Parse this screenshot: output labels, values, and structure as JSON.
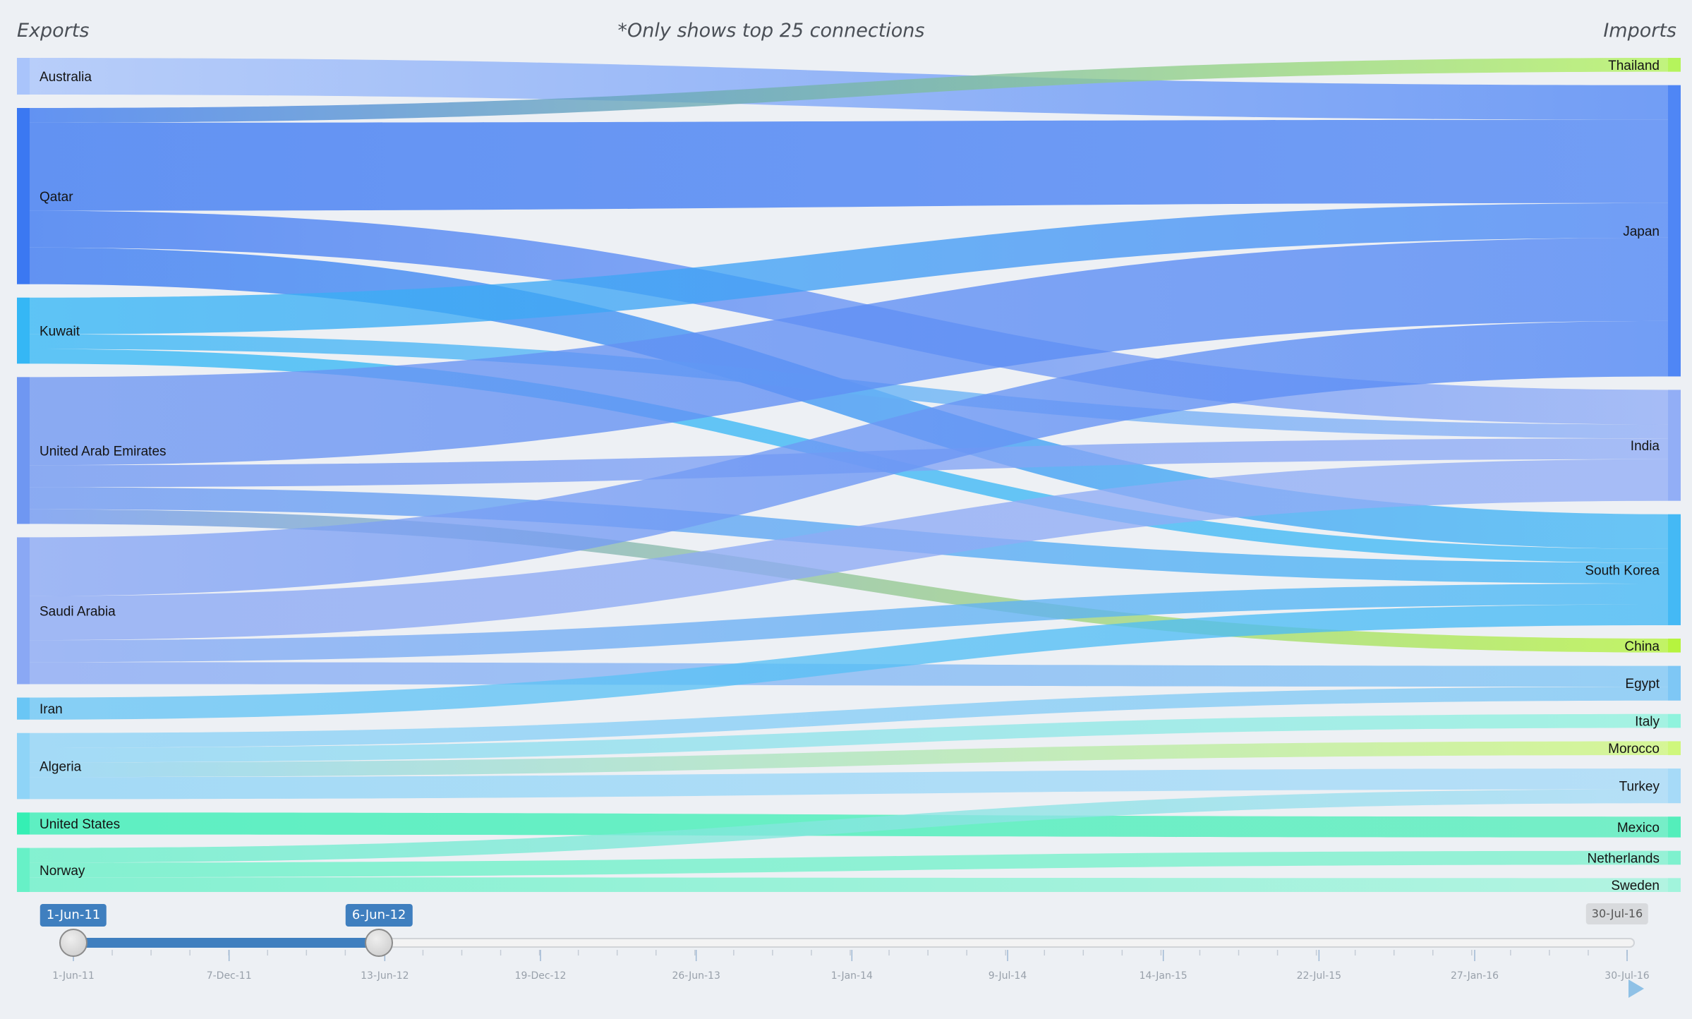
{
  "header": {
    "left_title": "Exports",
    "center_note": "*Only shows top 25 connections",
    "right_title": "Imports"
  },
  "chart_data": {
    "type": "sankey",
    "sources": [
      {
        "name": "Australia",
        "color": "#a9c4fb"
      },
      {
        "name": "Qatar",
        "color": "#3b78f2"
      },
      {
        "name": "Kuwait",
        "color": "#35b7f5"
      },
      {
        "name": "United Arab Emirates",
        "color": "#6f97f2"
      },
      {
        "name": "Saudi Arabia",
        "color": "#8aa8f4"
      },
      {
        "name": "Iran",
        "color": "#6ac6f5"
      },
      {
        "name": "Algeria",
        "color": "#8fd4f7"
      },
      {
        "name": "United States",
        "color": "#35efb4"
      },
      {
        "name": "Norway",
        "color": "#67f1c7"
      }
    ],
    "targets": [
      {
        "name": "Thailand",
        "color": "#b5f45c"
      },
      {
        "name": "Japan",
        "color": "#4f86f5"
      },
      {
        "name": "India",
        "color": "#92aef6"
      },
      {
        "name": "South Korea",
        "color": "#44b9f5"
      },
      {
        "name": "China",
        "color": "#b6f43e"
      },
      {
        "name": "Egypt",
        "color": "#7ec7f5"
      },
      {
        "name": "Italy",
        "color": "#8ff3dd"
      },
      {
        "name": "Morocco",
        "color": "#cff77c"
      },
      {
        "name": "Turkey",
        "color": "#a6daf8"
      },
      {
        "name": "Mexico",
        "color": "#54eebb"
      },
      {
        "name": "Netherlands",
        "color": "#7ef1ce"
      },
      {
        "name": "Sweden",
        "color": "#a1f4dc"
      }
    ],
    "links": [
      {
        "source": "Australia",
        "target": "Japan",
        "value": 5
      },
      {
        "source": "Qatar",
        "target": "Thailand",
        "value": 2
      },
      {
        "source": "Qatar",
        "target": "Japan",
        "value": 12
      },
      {
        "source": "Qatar",
        "target": "India",
        "value": 5
      },
      {
        "source": "Qatar",
        "target": "South Korea",
        "value": 5
      },
      {
        "source": "Kuwait",
        "target": "Japan",
        "value": 5
      },
      {
        "source": "Kuwait",
        "target": "India",
        "value": 2
      },
      {
        "source": "Kuwait",
        "target": "South Korea",
        "value": 2
      },
      {
        "source": "United Arab Emirates",
        "target": "Japan",
        "value": 12
      },
      {
        "source": "United Arab Emirates",
        "target": "India",
        "value": 3
      },
      {
        "source": "United Arab Emirates",
        "target": "South Korea",
        "value": 3
      },
      {
        "source": "United Arab Emirates",
        "target": "China",
        "value": 2
      },
      {
        "source": "Saudi Arabia",
        "target": "Japan",
        "value": 8
      },
      {
        "source": "Saudi Arabia",
        "target": "India",
        "value": 6
      },
      {
        "source": "Saudi Arabia",
        "target": "South Korea",
        "value": 3
      },
      {
        "source": "Saudi Arabia",
        "target": "Egypt",
        "value": 3
      },
      {
        "source": "Iran",
        "target": "South Korea",
        "value": 3
      },
      {
        "source": "Algeria",
        "target": "Egypt",
        "value": 2
      },
      {
        "source": "Algeria",
        "target": "Italy",
        "value": 2
      },
      {
        "source": "Algeria",
        "target": "Morocco",
        "value": 2
      },
      {
        "source": "Algeria",
        "target": "Turkey",
        "value": 3
      },
      {
        "source": "United States",
        "target": "Mexico",
        "value": 3
      },
      {
        "source": "Norway",
        "target": "Turkey",
        "value": 2
      },
      {
        "source": "Norway",
        "target": "Netherlands",
        "value": 2
      },
      {
        "source": "Norway",
        "target": "Sweden",
        "value": 2
      }
    ]
  },
  "timeline": {
    "start_value": "1-Jun-11",
    "end_value": "6-Jun-12",
    "max_value": "30-Jul-16",
    "range": [
      "2011-06-01",
      "2016-07-30"
    ],
    "ticks": [
      "1-Jun-11",
      "7-Dec-11",
      "13-Jun-12",
      "19-Dec-12",
      "26-Jun-13",
      "1-Jan-14",
      "9-Jul-14",
      "14-Jan-15",
      "22-Jul-15",
      "27-Jan-16",
      "30-Jul-16"
    ],
    "track_color": "#3f7fbf"
  }
}
